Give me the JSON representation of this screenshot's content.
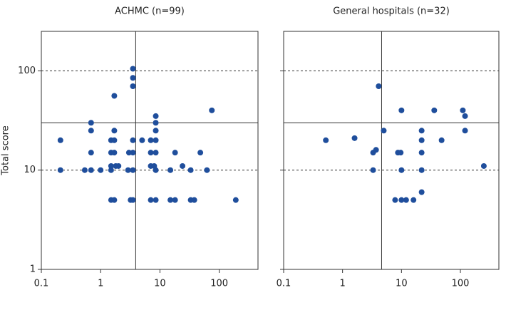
{
  "chart_data": [
    {
      "type": "scatter",
      "title": "ACHMC (n=99)",
      "ylabel": "Total score",
      "color": "#1f4e9c",
      "log_x": true,
      "log_y": true,
      "xlim": [
        0.1,
        450
      ],
      "ylim": [
        1,
        250
      ],
      "xticks": [
        0.1,
        1,
        10,
        100
      ],
      "yticks": [
        1,
        10,
        100
      ],
      "vline": 3.9,
      "hline": 30,
      "dashed_lines": [
        10,
        100
      ],
      "x": [
        0.21,
        0.21,
        0.54,
        0.69,
        0.69,
        0.69,
        0.69,
        1.0,
        1.7,
        1.5,
        1.7,
        1.5,
        1.7,
        1.5,
        1.7,
        1.5,
        1.8,
        1.5,
        1.7,
        2.0,
        2.9,
        3.0,
        3.2,
        3.5,
        3.5,
        3.5,
        3.5,
        3.5,
        3.5,
        3.5,
        5.0,
        7.0,
        7.0,
        7.0,
        7.0,
        8.5,
        8.5,
        8.5,
        8.5,
        8.5,
        8.5,
        8.5,
        8.0,
        18,
        15,
        18,
        15,
        24,
        33,
        33,
        38,
        48,
        62,
        75,
        190
      ],
      "y": [
        20,
        10,
        10,
        30,
        25,
        15,
        10,
        10,
        56,
        10,
        25,
        20,
        20,
        15,
        15,
        11,
        11,
        5,
        5,
        11,
        10,
        15,
        5,
        105,
        85,
        70,
        20,
        15,
        10,
        5,
        20,
        11,
        20,
        15,
        5,
        35,
        30,
        25,
        20,
        15,
        10,
        5,
        11,
        15,
        10,
        5,
        5,
        11,
        10,
        5,
        5,
        15,
        10,
        40,
        5
      ]
    },
    {
      "type": "scatter",
      "title": "General hospitals (n=32)",
      "color": "#1f4e9c",
      "log_x": true,
      "log_y": true,
      "xlim": [
        0.1,
        450
      ],
      "ylim": [
        1,
        250
      ],
      "xticks": [
        0.1,
        1,
        10,
        100
      ],
      "yticks": [
        1,
        10,
        100
      ],
      "vline": 4.6,
      "hline": 30,
      "dashed_lines": [
        10,
        100
      ],
      "x": [
        0.52,
        1.6,
        3.3,
        3.7,
        3.3,
        4.1,
        5.0,
        8.7,
        9.7,
        10,
        10,
        7.8,
        10,
        12,
        16,
        22,
        22,
        22,
        22,
        22,
        36,
        48,
        110,
        120,
        120,
        250
      ],
      "y": [
        20,
        21,
        15,
        16,
        10,
        70,
        25,
        15,
        15,
        40,
        10,
        5,
        5,
        5,
        5,
        25,
        20,
        15,
        10,
        6,
        40,
        20,
        40,
        35,
        25,
        11
      ]
    }
  ]
}
